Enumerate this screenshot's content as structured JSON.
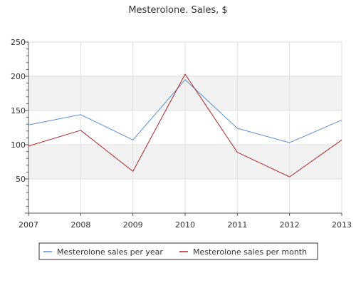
{
  "chart_data": {
    "type": "line",
    "title": "Mesterolone. Sales, $",
    "x": [
      "2007",
      "2008",
      "2009",
      "2010",
      "2011",
      "2012",
      "2013"
    ],
    "ylim": [
      0,
      250
    ],
    "yticks": [
      50,
      100,
      150,
      200,
      250
    ],
    "grid": true,
    "legend_position": "bottom",
    "series": [
      {
        "name": "Mesterolone sales per year",
        "color": "#5b8fd6",
        "values": [
          129,
          144,
          107,
          195,
          124,
          103,
          136
        ]
      },
      {
        "name": "Mesterolone sales per month",
        "color": "#b22222",
        "values": [
          98,
          121,
          61,
          203,
          89,
          53,
          107
        ]
      }
    ]
  }
}
